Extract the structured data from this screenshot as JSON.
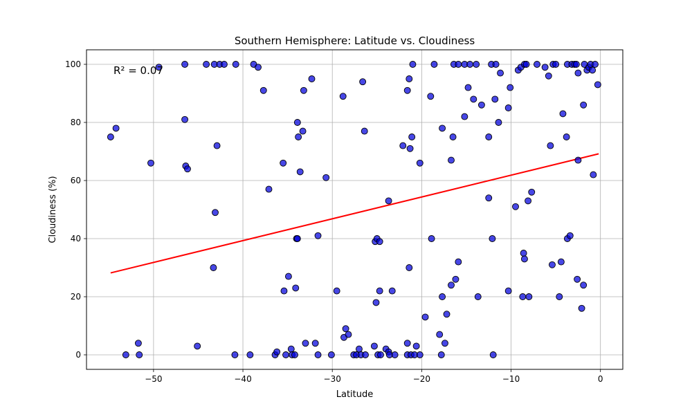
{
  "chart_data": {
    "type": "scatter",
    "title": "Southern Hemisphere: Latitude vs. Cloudiness",
    "xlabel": "Latitude",
    "ylabel": "Cloudiness (%)",
    "xlim": [
      -57.5,
      2.5
    ],
    "ylim": [
      -5,
      105
    ],
    "xticks": [
      -50,
      -40,
      -30,
      -20,
      -10,
      0
    ],
    "yticks": [
      0,
      20,
      40,
      60,
      80,
      100
    ],
    "grid": true,
    "annotation": "R² = 0.07",
    "regression": {
      "x": [
        -54.8,
        -0.2
      ],
      "y": [
        28.2,
        69.2
      ],
      "color": "#ff0000"
    },
    "marker_color": "#0000dd",
    "points": [
      [
        -54.8,
        75
      ],
      [
        -54.2,
        78
      ],
      [
        -53.1,
        0
      ],
      [
        -51.7,
        4
      ],
      [
        -51.6,
        0
      ],
      [
        -50.3,
        66
      ],
      [
        -49.4,
        99
      ],
      [
        -46.5,
        81
      ],
      [
        -46.5,
        100
      ],
      [
        -46.4,
        65
      ],
      [
        -46.2,
        64
      ],
      [
        -45.1,
        3
      ],
      [
        -44.1,
        100
      ],
      [
        -43.3,
        30
      ],
      [
        -43.2,
        100
      ],
      [
        -43.1,
        49
      ],
      [
        -42.9,
        72
      ],
      [
        -42.6,
        100
      ],
      [
        -42.1,
        100
      ],
      [
        -40.9,
        0
      ],
      [
        -40.8,
        100
      ],
      [
        -39.2,
        0
      ],
      [
        -38.8,
        100
      ],
      [
        -38.3,
        99
      ],
      [
        -37.7,
        91
      ],
      [
        -37.1,
        57
      ],
      [
        -36.4,
        0
      ],
      [
        -36.2,
        1
      ],
      [
        -35.5,
        66
      ],
      [
        -35.4,
        22
      ],
      [
        -35.2,
        0
      ],
      [
        -34.9,
        27
      ],
      [
        -34.6,
        2
      ],
      [
        -34.5,
        0
      ],
      [
        -34.2,
        0
      ],
      [
        -34.1,
        23
      ],
      [
        -34.0,
        40
      ],
      [
        -33.9,
        80
      ],
      [
        -33.8,
        75
      ],
      [
        -33.9,
        40
      ],
      [
        -33.6,
        63
      ],
      [
        -33.3,
        77
      ],
      [
        -33.2,
        91
      ],
      [
        -33.0,
        4
      ],
      [
        -32.3,
        95
      ],
      [
        -31.9,
        4
      ],
      [
        -31.6,
        41
      ],
      [
        -31.6,
        0
      ],
      [
        -30.7,
        61
      ],
      [
        -30.1,
        0
      ],
      [
        -29.5,
        22
      ],
      [
        -28.8,
        89
      ],
      [
        -28.7,
        6
      ],
      [
        -28.5,
        9
      ],
      [
        -28.2,
        7
      ],
      [
        -27.6,
        0
      ],
      [
        -27.3,
        0
      ],
      [
        -27.0,
        2
      ],
      [
        -26.8,
        0
      ],
      [
        -26.6,
        94
      ],
      [
        -26.4,
        77
      ],
      [
        -26.3,
        0
      ],
      [
        -25.3,
        3
      ],
      [
        -25.2,
        39
      ],
      [
        -25.1,
        18
      ],
      [
        -25.0,
        40
      ],
      [
        -24.9,
        0
      ],
      [
        -24.7,
        39
      ],
      [
        -24.7,
        22
      ],
      [
        -24.6,
        0
      ],
      [
        -24.0,
        2
      ],
      [
        -23.7,
        53
      ],
      [
        -23.7,
        1
      ],
      [
        -23.6,
        0
      ],
      [
        -23.3,
        22
      ],
      [
        -23.0,
        0
      ],
      [
        -22.1,
        72
      ],
      [
        -21.6,
        4
      ],
      [
        -21.6,
        91
      ],
      [
        -21.6,
        0
      ],
      [
        -21.4,
        95
      ],
      [
        -21.4,
        30
      ],
      [
        -21.3,
        71
      ],
      [
        -21.2,
        0
      ],
      [
        -21.1,
        75
      ],
      [
        -21.0,
        100
      ],
      [
        -20.8,
        0
      ],
      [
        -20.6,
        3
      ],
      [
        -20.2,
        66
      ],
      [
        -20.2,
        0
      ],
      [
        -19.6,
        13
      ],
      [
        -19.0,
        89
      ],
      [
        -18.9,
        40
      ],
      [
        -18.6,
        100
      ],
      [
        -18.0,
        7
      ],
      [
        -17.8,
        0
      ],
      [
        -17.7,
        78
      ],
      [
        -17.7,
        20
      ],
      [
        -17.4,
        4
      ],
      [
        -17.2,
        14
      ],
      [
        -16.7,
        24
      ],
      [
        -16.7,
        67
      ],
      [
        -16.5,
        75
      ],
      [
        -16.4,
        100
      ],
      [
        -16.2,
        26
      ],
      [
        -15.9,
        32
      ],
      [
        -15.9,
        100
      ],
      [
        -15.2,
        82
      ],
      [
        -15.2,
        100
      ],
      [
        -14.8,
        92
      ],
      [
        -14.6,
        100
      ],
      [
        -14.2,
        88
      ],
      [
        -13.9,
        100
      ],
      [
        -13.7,
        20
      ],
      [
        -13.3,
        86
      ],
      [
        -12.5,
        75
      ],
      [
        -12.5,
        54
      ],
      [
        -12.2,
        100
      ],
      [
        -12.1,
        40
      ],
      [
        -12.0,
        0
      ],
      [
        -11.8,
        88
      ],
      [
        -11.7,
        100
      ],
      [
        -11.4,
        80
      ],
      [
        -11.2,
        97
      ],
      [
        -10.3,
        22
      ],
      [
        -10.3,
        85
      ],
      [
        -10.1,
        92
      ],
      [
        -9.5,
        51
      ],
      [
        -9.2,
        98
      ],
      [
        -8.9,
        99
      ],
      [
        -8.7,
        20
      ],
      [
        -8.6,
        35
      ],
      [
        -8.5,
        33
      ],
      [
        -8.5,
        100
      ],
      [
        -8.3,
        100
      ],
      [
        -8.1,
        53
      ],
      [
        -8.0,
        20
      ],
      [
        -7.7,
        56
      ],
      [
        -7.1,
        100
      ],
      [
        -6.2,
        99
      ],
      [
        -5.8,
        96
      ],
      [
        -5.6,
        72
      ],
      [
        -5.4,
        31
      ],
      [
        -5.3,
        100
      ],
      [
        -5.0,
        100
      ],
      [
        -4.6,
        20
      ],
      [
        -4.4,
        32
      ],
      [
        -4.2,
        83
      ],
      [
        -3.8,
        75
      ],
      [
        -3.7,
        100
      ],
      [
        -3.7,
        40
      ],
      [
        -3.4,
        41
      ],
      [
        -3.2,
        100
      ],
      [
        -2.9,
        100
      ],
      [
        -2.7,
        100
      ],
      [
        -2.6,
        26
      ],
      [
        -2.5,
        67
      ],
      [
        -2.5,
        97
      ],
      [
        -2.1,
        16
      ],
      [
        -1.9,
        24
      ],
      [
        -1.9,
        86
      ],
      [
        -1.8,
        100
      ],
      [
        -1.5,
        98
      ],
      [
        -1.3,
        99
      ],
      [
        -1.1,
        100
      ],
      [
        -0.9,
        98
      ],
      [
        -0.8,
        62
      ],
      [
        -0.6,
        100
      ],
      [
        -0.3,
        93
      ]
    ]
  }
}
